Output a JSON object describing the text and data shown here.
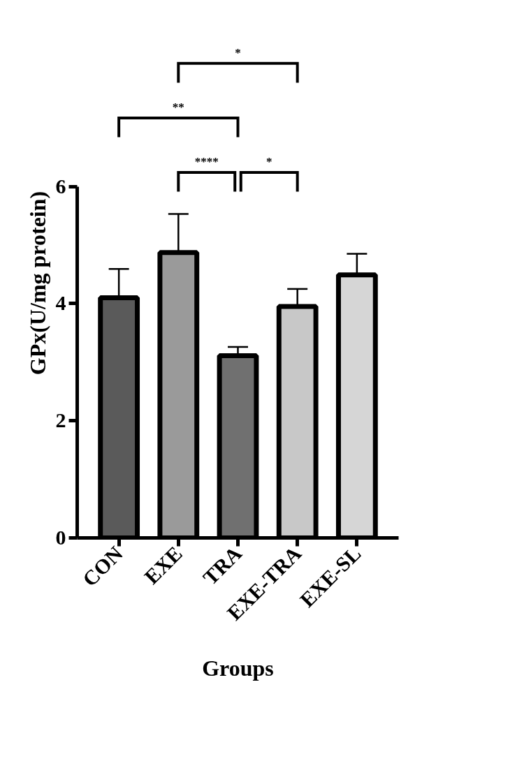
{
  "chart_data": {
    "type": "bar",
    "xlabel": "Groups",
    "ylabel": "GPx(U/mg protein)",
    "categories": [
      "CON",
      "EXE",
      "TRA",
      "EXE-TRA",
      "EXE-SL"
    ],
    "values": [
      4.1,
      4.87,
      3.11,
      3.95,
      4.49
    ],
    "errors": [
      [
        4.1,
        4.59
      ],
      [
        4.87,
        5.53
      ],
      [
        3.11,
        3.26
      ],
      [
        3.95,
        4.25
      ],
      [
        4.49,
        4.85
      ]
    ],
    "colors": [
      "#5a5a5a",
      "#9a9a9a",
      "#707070",
      "#c8c8c8",
      "#d6d6d6"
    ],
    "ylim": [
      0,
      6
    ],
    "yticks": [
      0,
      2,
      4,
      6
    ],
    "grid": false,
    "annotations": [
      "*",
      "**",
      "****",
      "*"
    ]
  }
}
